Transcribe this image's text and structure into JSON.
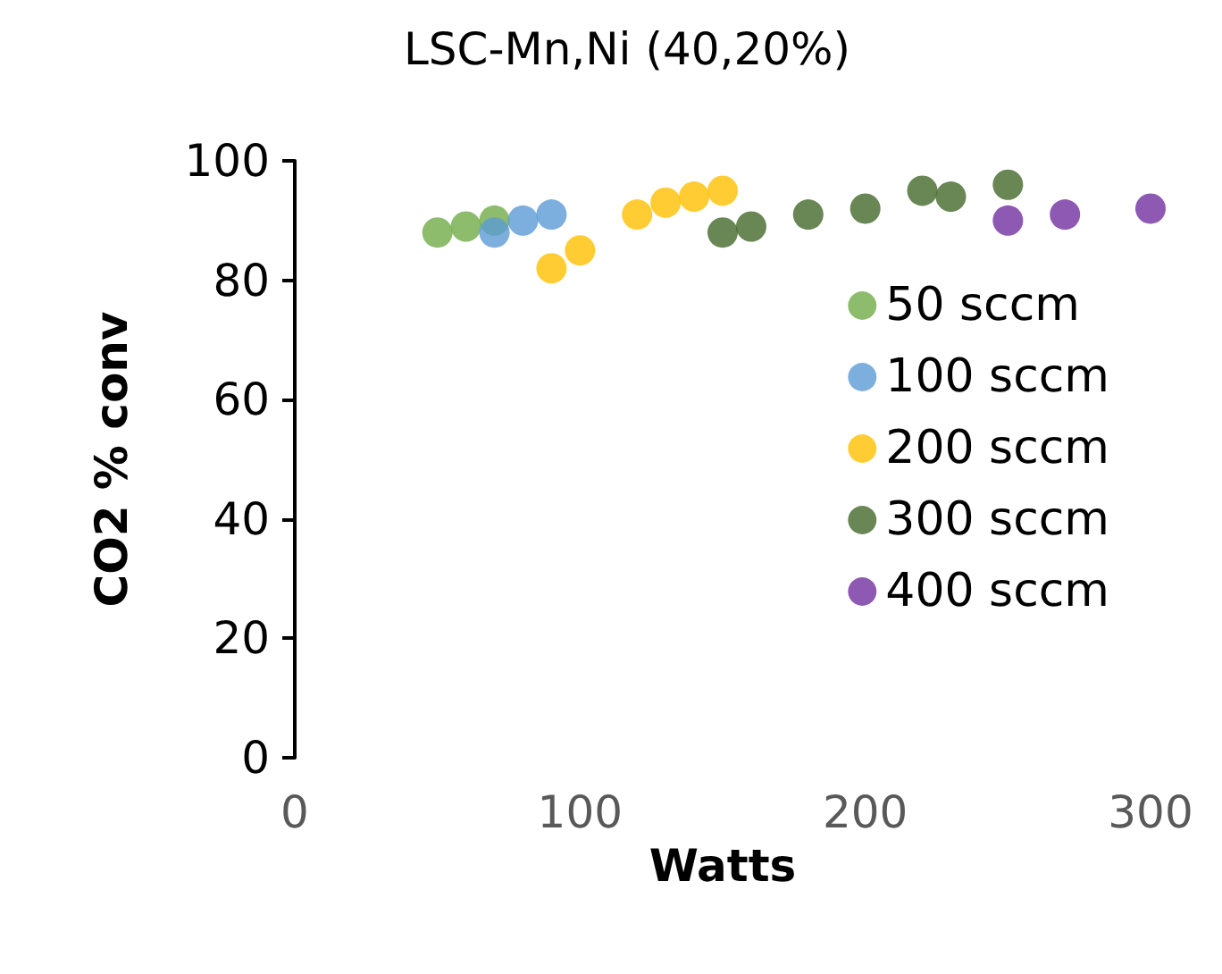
{
  "chart_data": {
    "type": "scatter",
    "title": "LSC-Mn,Ni (40,20%)",
    "xlabel": "Watts",
    "ylabel": "CO2 % conv",
    "xlim": [
      0,
      300
    ],
    "xticks": [
      0,
      100,
      200,
      300
    ],
    "ylim": [
      0,
      100
    ],
    "yticks": [
      0,
      20,
      40,
      60,
      80,
      100
    ],
    "grid": false,
    "legend": "right",
    "marker": "circle",
    "series": [
      {
        "name": "50 sccm",
        "color": "#70ad47",
        "x": [
          50,
          60,
          70
        ],
        "values": [
          88,
          89,
          90
        ]
      },
      {
        "name": "100 sccm",
        "color": "#5b9bd5",
        "x": [
          70,
          80,
          90
        ],
        "values": [
          88,
          90,
          91
        ]
      },
      {
        "name": "200 sccm",
        "color": "#ffc000",
        "x": [
          90,
          100,
          120,
          130,
          140,
          150
        ],
        "values": [
          82,
          85,
          91,
          93,
          94,
          95
        ]
      },
      {
        "name": "300 sccm",
        "color": "#43682b",
        "x": [
          150,
          160,
          180,
          200,
          220,
          230,
          250
        ],
        "values": [
          88,
          89,
          91,
          92,
          95,
          94,
          96
        ]
      },
      {
        "name": "400 sccm",
        "color": "#7030a0",
        "x": [
          250,
          270,
          300
        ],
        "values": [
          90,
          91,
          92
        ]
      }
    ]
  }
}
